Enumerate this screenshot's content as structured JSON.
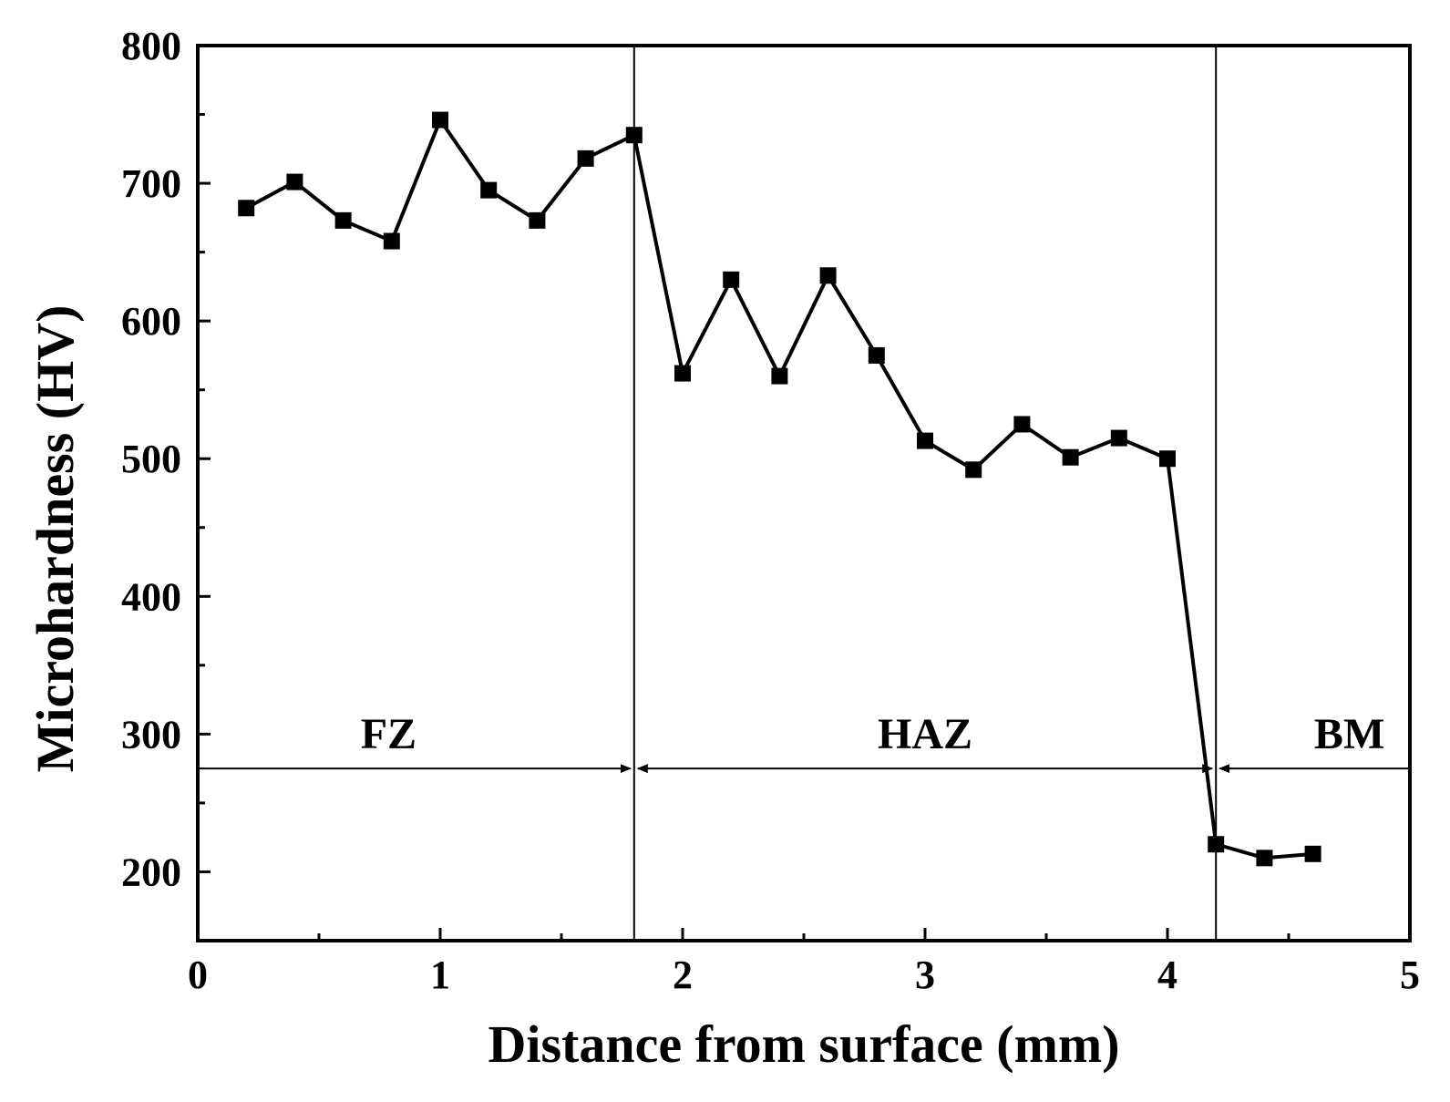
{
  "chart_data": {
    "type": "line",
    "xlabel": "Distance from surface (mm)",
    "ylabel": "Microhardness (HV)",
    "xlim": [
      0,
      5
    ],
    "ylim": [
      150,
      800
    ],
    "x_ticks": [
      "0",
      "1",
      "2",
      "3",
      "4",
      "5"
    ],
    "x_tick_values": [
      0,
      1,
      2,
      3,
      4,
      5
    ],
    "y_ticks": [
      "200",
      "300",
      "400",
      "500",
      "600",
      "700",
      "800"
    ],
    "y_tick_values": [
      200,
      300,
      400,
      500,
      600,
      700,
      800
    ],
    "grid": false,
    "marker": "square",
    "line_color": "#000000",
    "series": [
      {
        "x": [
          0.2,
          0.4,
          0.6,
          0.8,
          1.0,
          1.2,
          1.4,
          1.6,
          1.8,
          2.0,
          2.2,
          2.4,
          2.6,
          2.8,
          3.0,
          3.2,
          3.4,
          3.6,
          3.8,
          4.0,
          4.2,
          4.4,
          4.6
        ],
        "y": [
          682,
          701,
          673,
          658,
          746,
          695,
          673,
          718,
          735,
          562,
          630,
          560,
          633,
          575,
          513,
          492,
          525,
          501,
          515,
          500,
          220,
          210,
          213
        ]
      }
    ],
    "regions": [
      {
        "label": "FZ",
        "x_start": 0,
        "x_end": 1.8
      },
      {
        "label": "HAZ",
        "x_start": 1.8,
        "x_end": 4.2
      },
      {
        "label": "BM",
        "x_start": 4.2,
        "x_end": 5
      }
    ],
    "boundaries": [
      1.8,
      4.2
    ],
    "region_arrow_y": 275
  }
}
